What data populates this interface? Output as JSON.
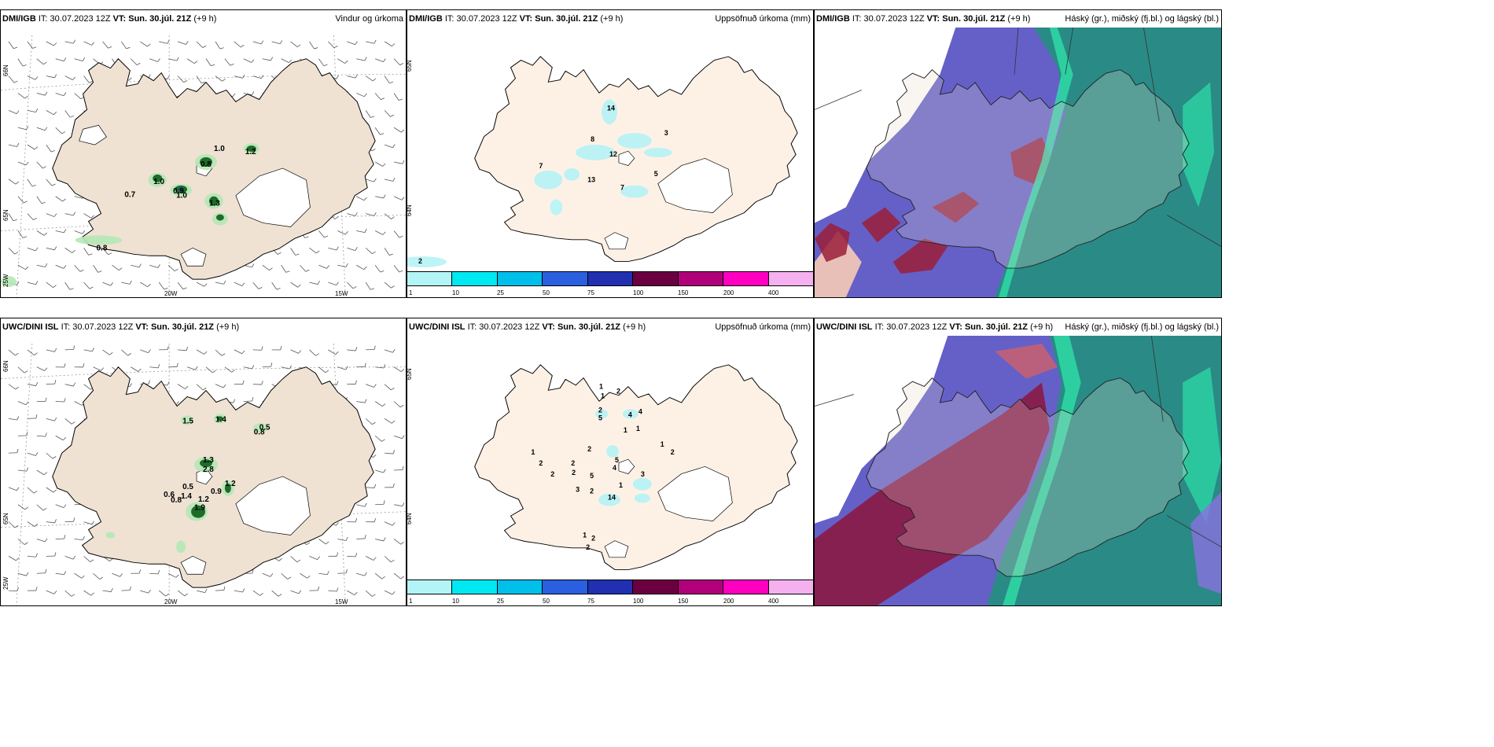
{
  "panels": [
    {
      "model": "DMI/IGB",
      "it_label": "IT:",
      "it_value": "30.07.2023 12Z",
      "vt_label": "VT:",
      "vt_value": "Sun. 30.júl. 21Z",
      "offset": "(+9 h)",
      "title": "Vindur og úrkoma"
    },
    {
      "model": "DMI/IGB",
      "it_label": "IT:",
      "it_value": "30.07.2023 12Z",
      "vt_label": "VT:",
      "vt_value": "Sun. 30.júl. 21Z",
      "offset": "(+9 h)",
      "title": "Uppsöfnuð úrkoma (mm)"
    },
    {
      "model": "DMI/IGB",
      "it_label": "IT:",
      "it_value": "30.07.2023 12Z",
      "vt_label": "VT:",
      "vt_value": "Sun. 30.júl. 21Z",
      "offset": "(+9 h)",
      "title": "Háský (gr.), miðský (fj.bl.) og lágský (bl.)"
    },
    {
      "model": "UWC/DINI ISL",
      "it_label": "IT:",
      "it_value": "30.07.2023 12Z",
      "vt_label": "VT:",
      "vt_value": "Sun. 30.júl. 21Z",
      "offset": "(+9 h)",
      "title": ""
    },
    {
      "model": "UWC/DINI ISL",
      "it_label": "IT:",
      "it_value": "30.07.2023 12Z",
      "vt_label": "VT:",
      "vt_value": "Sun. 30.júl. 21Z",
      "offset": "(+9 h)",
      "title": "Uppsöfnuð úrkoma (mm)"
    },
    {
      "model": "UWC/DINI ISL",
      "it_label": "IT:",
      "it_value": "30.07.2023 12Z",
      "vt_label": "VT:",
      "vt_value": "Sun. 30.júl. 21Z",
      "offset": "(+9 h)",
      "title": "Háský (gr.), miðský (fj.bl.) og lágský (bl.)"
    }
  ],
  "grid_labels": {
    "lat66": "66N",
    "lat64": "64N",
    "lat65": "65N",
    "lon25": "25W",
    "lon20": "20W",
    "lon15": "15W"
  },
  "colorbar": {
    "ticks": [
      "1",
      "10",
      "25",
      "50",
      "75",
      "100",
      "150",
      "200",
      "400"
    ],
    "colors": [
      "#b3f5f7",
      "#00e8f0",
      "#00bfea",
      "#2a5fe0",
      "#2030b0",
      "#6a0040",
      "#b0007a",
      "#ff00c0",
      "#f5b0f0"
    ]
  },
  "wind_precip_top": [
    "1.0",
    "0.8",
    "1.2",
    "1.0",
    "0.7",
    "0.9",
    "1.0",
    "1.3",
    "0.8"
  ],
  "wind_precip_bottom": [
    "1.5",
    "1.4",
    "0.8",
    "0.5",
    "1.3",
    "2.8",
    "0.5",
    "0.6",
    "1.4",
    "0.8",
    "1.2",
    "0.9",
    "1.2",
    "1.9"
  ],
  "accum_top": [
    "14",
    "8",
    "12",
    "3",
    "7",
    "13",
    "7",
    "5",
    "2"
  ],
  "accum_bottom": [
    "1",
    "2",
    "1",
    "2",
    "4",
    "4",
    "5",
    "1",
    "1",
    "1",
    "2",
    "1",
    "2",
    "2",
    "2",
    "5",
    "2",
    "4",
    "5",
    "3",
    "2",
    "3",
    "2",
    "14",
    "1",
    "1",
    "2",
    "2"
  ]
}
